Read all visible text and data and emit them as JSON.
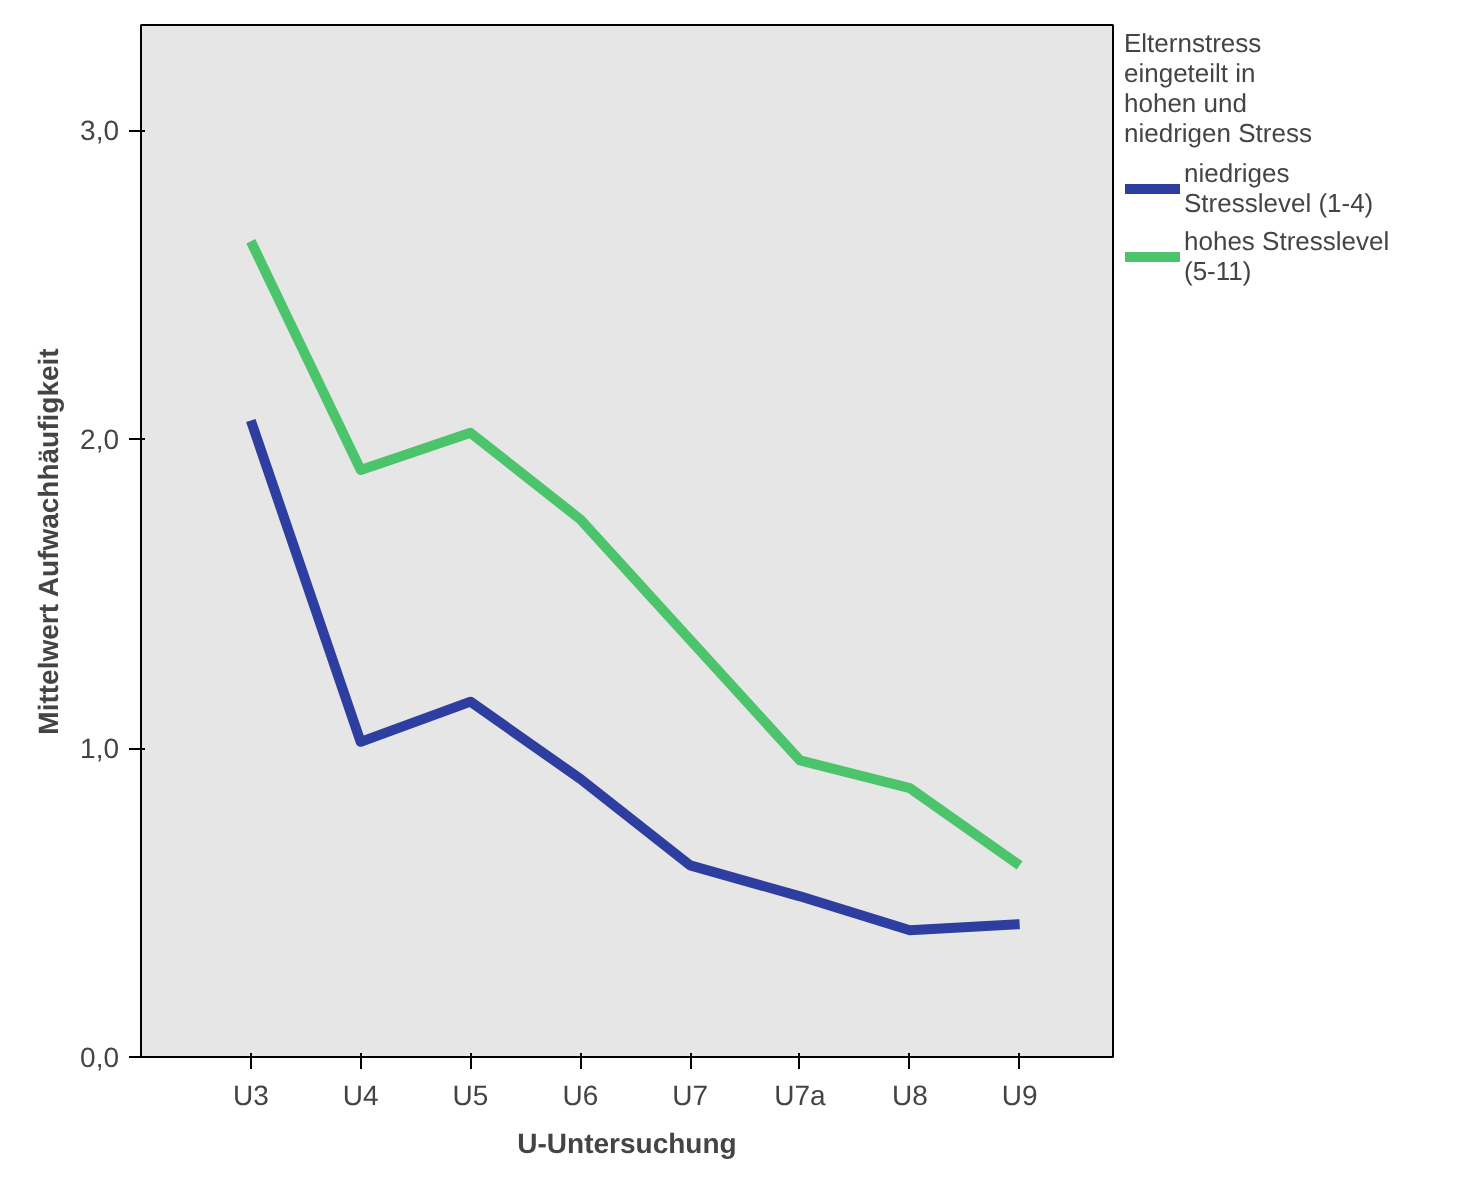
{
  "chart_data": {
    "type": "line",
    "xlabel": "U-Untersuchung",
    "ylabel": "Mittelwert Aufwachhäufigkeit",
    "legend_title": "Elternstress eingeteilt in hohen und niedrigen Stress",
    "categories": [
      "U3",
      "U4",
      "U5",
      "U6",
      "U7",
      "U7a",
      "U8",
      "U9"
    ],
    "series": [
      {
        "name": "niedriges Stresslevel (1-4)",
        "color": "#2e3ea0",
        "values": [
          2.06,
          1.02,
          1.15,
          0.9,
          0.62,
          0.52,
          0.41,
          0.43
        ]
      },
      {
        "name": "hohes Stresslevel (5-11)",
        "color": "#4cc46c",
        "values": [
          2.64,
          1.9,
          2.02,
          1.74,
          1.35,
          0.96,
          0.87,
          0.62
        ]
      }
    ],
    "ylim": [
      0,
      3.34
    ],
    "yticks": [
      {
        "value": 0,
        "label": "0,0"
      },
      {
        "value": 1,
        "label": "1,0"
      },
      {
        "value": 2,
        "label": "2,0"
      },
      {
        "value": 3,
        "label": "3,0"
      }
    ],
    "grid": false,
    "legend": "right",
    "marker": "none",
    "line_style": "solid"
  }
}
